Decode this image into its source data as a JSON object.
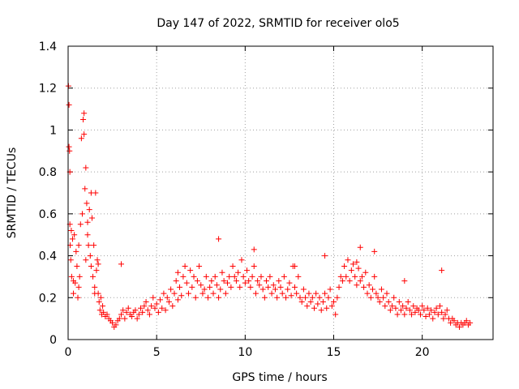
{
  "chart_data": {
    "type": "scatter",
    "title": "Day 147 of 2022, SRMTID for receiver olo5",
    "xlabel": "GPS time / hours",
    "ylabel": "SRMTID / TECUs",
    "xlim": [
      0,
      24
    ],
    "ylim": [
      0,
      1.4
    ],
    "xticks": [
      0,
      5,
      10,
      15,
      20
    ],
    "xtick_labels": [
      "0",
      "5",
      "10",
      "15",
      "20"
    ],
    "yticks": [
      0,
      0.2,
      0.4,
      0.6,
      0.8,
      1.0,
      1.2,
      1.4
    ],
    "ytick_labels": [
      "0",
      "0.2",
      "0.4",
      "0.6",
      "0.8",
      "1",
      "1.2",
      "1.4"
    ],
    "grid": true,
    "marker": "+",
    "color": "#ff0000",
    "series": [
      {
        "name": "SRMTID",
        "x": [
          0.02,
          0.05,
          0.08,
          0.1,
          0.12,
          0.15,
          0.18,
          0.2,
          0.25,
          0.3,
          0.35,
          0.4,
          0.45,
          0.5,
          0.55,
          0.6,
          0.65,
          0.7,
          0.75,
          0.8,
          0.85,
          0.9,
          0.95,
          1.0,
          1.05,
          1.1,
          1.15,
          1.2,
          1.25,
          1.3,
          1.35,
          1.4,
          1.45,
          1.5,
          1.55,
          1.6,
          1.65,
          1.7,
          1.75,
          1.8,
          1.85,
          1.9,
          1.95,
          2.0,
          2.1,
          2.2,
          2.3,
          2.4,
          2.5,
          2.6,
          2.7,
          2.8,
          2.9,
          3.0,
          3.1,
          3.2,
          3.3,
          3.4,
          3.5,
          3.6,
          3.7,
          3.8,
          3.9,
          4.0,
          4.1,
          4.2,
          4.3,
          4.4,
          4.5,
          4.6,
          4.7,
          4.8,
          4.9,
          5.0,
          5.1,
          5.2,
          5.3,
          5.4,
          5.5,
          5.6,
          5.7,
          5.8,
          5.9,
          6.0,
          6.1,
          6.2,
          6.3,
          6.4,
          6.5,
          6.6,
          6.7,
          6.8,
          6.9,
          7.0,
          7.1,
          7.2,
          7.3,
          7.4,
          7.5,
          7.6,
          7.7,
          7.8,
          7.9,
          8.0,
          8.1,
          8.2,
          8.3,
          8.4,
          8.5,
          8.6,
          8.7,
          8.8,
          8.9,
          9.0,
          9.1,
          9.2,
          9.3,
          9.4,
          9.5,
          9.6,
          9.7,
          9.8,
          9.9,
          10.0,
          10.1,
          10.2,
          10.3,
          10.4,
          10.5,
          10.6,
          10.7,
          10.8,
          10.9,
          11.0,
          11.1,
          11.2,
          11.3,
          11.4,
          11.5,
          11.6,
          11.7,
          11.8,
          11.9,
          12.0,
          12.1,
          12.2,
          12.3,
          12.4,
          12.5,
          12.6,
          12.7,
          12.8,
          12.9,
          13.0,
          13.1,
          13.2,
          13.3,
          13.4,
          13.5,
          13.6,
          13.7,
          13.8,
          13.9,
          14.0,
          14.1,
          14.2,
          14.3,
          14.4,
          14.5,
          14.6,
          14.7,
          14.8,
          14.9,
          15.0,
          15.1,
          15.2,
          15.3,
          15.4,
          15.5,
          15.6,
          15.7,
          15.8,
          15.9,
          16.0,
          16.1,
          16.2,
          16.3,
          16.4,
          16.5,
          16.6,
          16.7,
          16.8,
          16.9,
          17.0,
          17.1,
          17.2,
          17.3,
          17.4,
          17.5,
          17.6,
          17.7,
          17.8,
          17.9,
          18.0,
          18.1,
          18.2,
          18.3,
          18.4,
          18.5,
          18.6,
          18.7,
          18.8,
          18.9,
          19.0,
          19.1,
          19.2,
          19.3,
          19.4,
          19.5,
          19.6,
          19.7,
          19.8,
          19.9,
          20.0,
          20.1,
          20.2,
          20.3,
          20.4,
          20.5,
          20.6,
          20.7,
          20.8,
          20.9,
          21.0,
          21.1,
          21.2,
          21.3,
          21.4,
          21.5,
          21.6,
          21.7,
          21.8,
          21.9,
          22.0,
          22.1,
          22.2,
          22.3,
          22.4,
          22.5,
          22.6,
          22.7,
          0.05,
          0.1,
          0.3,
          0.6,
          0.9,
          1.0,
          1.1,
          1.3,
          1.5,
          1.7,
          3.0,
          6.2,
          8.5,
          10.5,
          12.8,
          14.5,
          16.3,
          16.5,
          17.3,
          19.0,
          21.1
        ],
        "y": [
          1.21,
          1.12,
          0.9,
          0.55,
          0.45,
          0.38,
          0.52,
          0.3,
          0.48,
          0.22,
          0.5,
          0.27,
          0.42,
          0.35,
          0.2,
          0.45,
          0.3,
          0.55,
          0.96,
          0.6,
          1.05,
          0.98,
          0.72,
          0.38,
          0.65,
          0.56,
          0.45,
          0.62,
          0.4,
          0.35,
          0.58,
          0.3,
          0.45,
          0.25,
          0.7,
          0.33,
          0.38,
          0.22,
          0.18,
          0.14,
          0.2,
          0.12,
          0.16,
          0.13,
          0.11,
          0.12,
          0.1,
          0.09,
          0.08,
          0.06,
          0.07,
          0.09,
          0.1,
          0.12,
          0.14,
          0.1,
          0.13,
          0.15,
          0.12,
          0.11,
          0.13,
          0.14,
          0.1,
          0.12,
          0.15,
          0.13,
          0.16,
          0.18,
          0.14,
          0.12,
          0.16,
          0.2,
          0.15,
          0.17,
          0.13,
          0.19,
          0.15,
          0.22,
          0.14,
          0.2,
          0.18,
          0.24,
          0.16,
          0.22,
          0.28,
          0.19,
          0.25,
          0.21,
          0.3,
          0.35,
          0.27,
          0.22,
          0.33,
          0.25,
          0.3,
          0.2,
          0.28,
          0.35,
          0.26,
          0.22,
          0.24,
          0.3,
          0.2,
          0.25,
          0.28,
          0.22,
          0.3,
          0.26,
          0.2,
          0.24,
          0.32,
          0.28,
          0.22,
          0.27,
          0.3,
          0.25,
          0.35,
          0.3,
          0.28,
          0.32,
          0.25,
          0.38,
          0.3,
          0.27,
          0.33,
          0.28,
          0.25,
          0.3,
          0.35,
          0.22,
          0.28,
          0.26,
          0.3,
          0.24,
          0.2,
          0.28,
          0.25,
          0.3,
          0.22,
          0.26,
          0.24,
          0.2,
          0.28,
          0.25,
          0.22,
          0.3,
          0.2,
          0.24,
          0.27,
          0.21,
          0.35,
          0.25,
          0.22,
          0.3,
          0.2,
          0.18,
          0.24,
          0.2,
          0.16,
          0.22,
          0.18,
          0.2,
          0.15,
          0.22,
          0.17,
          0.2,
          0.14,
          0.18,
          0.22,
          0.15,
          0.2,
          0.24,
          0.16,
          0.18,
          0.12,
          0.2,
          0.25,
          0.3,
          0.28,
          0.35,
          0.3,
          0.38,
          0.28,
          0.33,
          0.36,
          0.3,
          0.26,
          0.34,
          0.28,
          0.3,
          0.25,
          0.32,
          0.22,
          0.26,
          0.2,
          0.24,
          0.3,
          0.22,
          0.2,
          0.18,
          0.24,
          0.2,
          0.16,
          0.22,
          0.18,
          0.14,
          0.16,
          0.2,
          0.15,
          0.12,
          0.18,
          0.14,
          0.16,
          0.12,
          0.15,
          0.18,
          0.14,
          0.12,
          0.16,
          0.13,
          0.15,
          0.14,
          0.12,
          0.16,
          0.14,
          0.11,
          0.15,
          0.12,
          0.14,
          0.1,
          0.13,
          0.15,
          0.12,
          0.16,
          0.13,
          0.1,
          0.12,
          0.14,
          0.1,
          0.08,
          0.1,
          0.09,
          0.07,
          0.08,
          0.06,
          0.08,
          0.07,
          0.08,
          0.09,
          0.07,
          0.08,
          0.92,
          0.8,
          0.28,
          0.25,
          1.08,
          0.82,
          0.5,
          0.7,
          0.22,
          0.36,
          0.36,
          0.32,
          0.48,
          0.43,
          0.35,
          0.4,
          0.37,
          0.44,
          0.42,
          0.28,
          0.33
        ]
      }
    ]
  }
}
